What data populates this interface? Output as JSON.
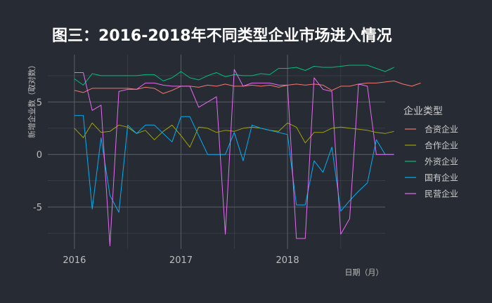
{
  "chart_data": {
    "type": "line",
    "title": "图三：2016-2018年不同类型企业市场进入情况",
    "xlabel": "日期（月）",
    "ylabel": "新增企业数（取对数）",
    "x_start": "2016-01",
    "x_ticks": [
      {
        "label": "2016",
        "date": "2016-01"
      },
      {
        "label": "2017",
        "date": "2017-01"
      },
      {
        "label": "2018",
        "date": "2018-01"
      }
    ],
    "xlim": [
      "2015-10",
      "2018-12"
    ],
    "y_ticks": [
      -5,
      0,
      5
    ],
    "ylim": [
      -9,
      9.5
    ],
    "grid": true,
    "legend": {
      "title": "企业类型",
      "position": "right"
    },
    "series": [
      {
        "name": "合资企业",
        "color": "#f8766d",
        "values": [
          6.1,
          5.9,
          6.3,
          6.3,
          6.3,
          6.3,
          6.3,
          6.2,
          6.4,
          6.3,
          5.8,
          6.1,
          6.5,
          6.5,
          6.4,
          6.6,
          6.5,
          6.7,
          6.5,
          6.5,
          6.6,
          6.5,
          6.6,
          6.4,
          6.6,
          6.7,
          6.6,
          6.7,
          6.6,
          6.1,
          6.5,
          6.5,
          6.7,
          6.8,
          6.8,
          6.9,
          7.0,
          6.7,
          6.5,
          6.8
        ]
      },
      {
        "name": "合作企业",
        "color": "#a3a500",
        "values": [
          2.5,
          1.6,
          3.0,
          2.1,
          2.2,
          2.8,
          2.6,
          2.0,
          2.3,
          1.4,
          2.2,
          2.8,
          1.8,
          0.7,
          2.6,
          2.5,
          2.1,
          2.3,
          2.2,
          2.5,
          2.6,
          2.5,
          2.3,
          2.2,
          3.0,
          2.6,
          1.1,
          2.1,
          2.1,
          2.5,
          2.6,
          2.5,
          2.4,
          2.3,
          2.1,
          2.0,
          2.2
        ]
      },
      {
        "name": "外资企业",
        "color": "#00bf7d",
        "values": [
          7.2,
          6.6,
          7.7,
          7.5,
          7.5,
          7.5,
          7.5,
          7.5,
          7.6,
          7.6,
          7.0,
          7.3,
          7.9,
          7.3,
          7.1,
          7.5,
          7.8,
          7.4,
          7.6,
          7.5,
          7.5,
          7.7,
          7.6,
          8.2,
          8.2,
          8.3,
          8.0,
          8.4,
          8.3,
          8.3,
          8.4,
          8.5,
          8.5,
          8.5,
          8.2,
          7.9,
          8.3
        ]
      },
      {
        "name": "国有企业",
        "color": "#00b0f6",
        "values": [
          3.7,
          3.7,
          -5.2,
          1.6,
          -3.9,
          -5.5,
          2.8,
          2.0,
          2.8,
          2.8,
          2.0,
          1.2,
          3.6,
          3.6,
          1.8,
          0.0,
          0.0,
          0.0,
          2.1,
          -0.6,
          2.8,
          2.5,
          2.3,
          2.1,
          1.9,
          -4.8,
          -4.8,
          -0.6,
          -1.7,
          0.7,
          -5.4,
          -4.4,
          -3.5,
          -2.7,
          1.4,
          0.0,
          0.0
        ]
      },
      {
        "name": "民营企业",
        "color": "#e76bf3",
        "values": [
          7.8,
          7.8,
          4.2,
          4.7,
          -8.7,
          6.0,
          6.2,
          6.2,
          6.8,
          6.8,
          6.6,
          6.5,
          6.5,
          6.5,
          4.5,
          5.0,
          5.5,
          -7.6,
          8.1,
          6.5,
          6.8,
          6.8,
          6.8,
          6.6,
          6.6,
          -8.0,
          -8.0,
          7.3,
          6.2,
          6.0,
          -7.6,
          -6.1,
          6.7,
          6.5,
          0.0,
          0.0,
          0.0
        ]
      }
    ]
  }
}
